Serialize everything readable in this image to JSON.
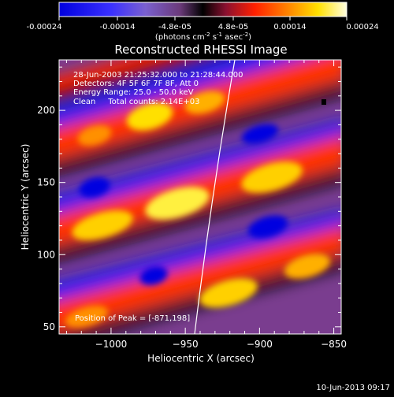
{
  "colorbar": {
    "tick_labels": [
      "-0.00024",
      "-0.00014",
      "-4.8e-05",
      "4.8e-05",
      "0.00014",
      "0.00024"
    ],
    "units_label": "(photons cm",
    "units_exp1": "-2",
    "units_mid1": " s",
    "units_exp2": "-1",
    "units_mid2": " asec",
    "units_exp3": "-2",
    "units_end": ")"
  },
  "title": "Reconstructed RHESSI Image",
  "info": {
    "line1": "28-Jun-2003 21:25:32.000 to 21:28:44.000",
    "line2": "Detectors: 4F 5F 6F 7F 8F, Att 0",
    "line3": "Energy Range: 25.0 - 50.0 keV",
    "line4": "Clean     Total counts: 2.14E+03",
    "peak": "Position of Peak = [-871,198]"
  },
  "axes": {
    "xlabel": "Heliocentric X (arcsec)",
    "ylabel": "Heliocentric Y (arcsec)",
    "x_range": [
      -1035,
      -845
    ],
    "y_range": [
      45,
      235
    ],
    "x_ticks": [
      {
        "value": -1000,
        "label": "−1000"
      },
      {
        "value": -950,
        "label": "−950"
      },
      {
        "value": -900,
        "label": "−900"
      },
      {
        "value": -850,
        "label": "−850"
      }
    ],
    "y_ticks": [
      {
        "value": 50,
        "label": "50"
      },
      {
        "value": 100,
        "label": "100"
      },
      {
        "value": 150,
        "label": "150"
      },
      {
        "value": 200,
        "label": "200"
      }
    ]
  },
  "footer_date": "10-Jun-2013 09:17",
  "colors": {
    "background": "#000000",
    "negative": "#0000ff",
    "mid": "#7a3d8f",
    "positive_low": "#ff3300",
    "positive_high": "#ffff99",
    "limb": "#ffffff"
  }
}
